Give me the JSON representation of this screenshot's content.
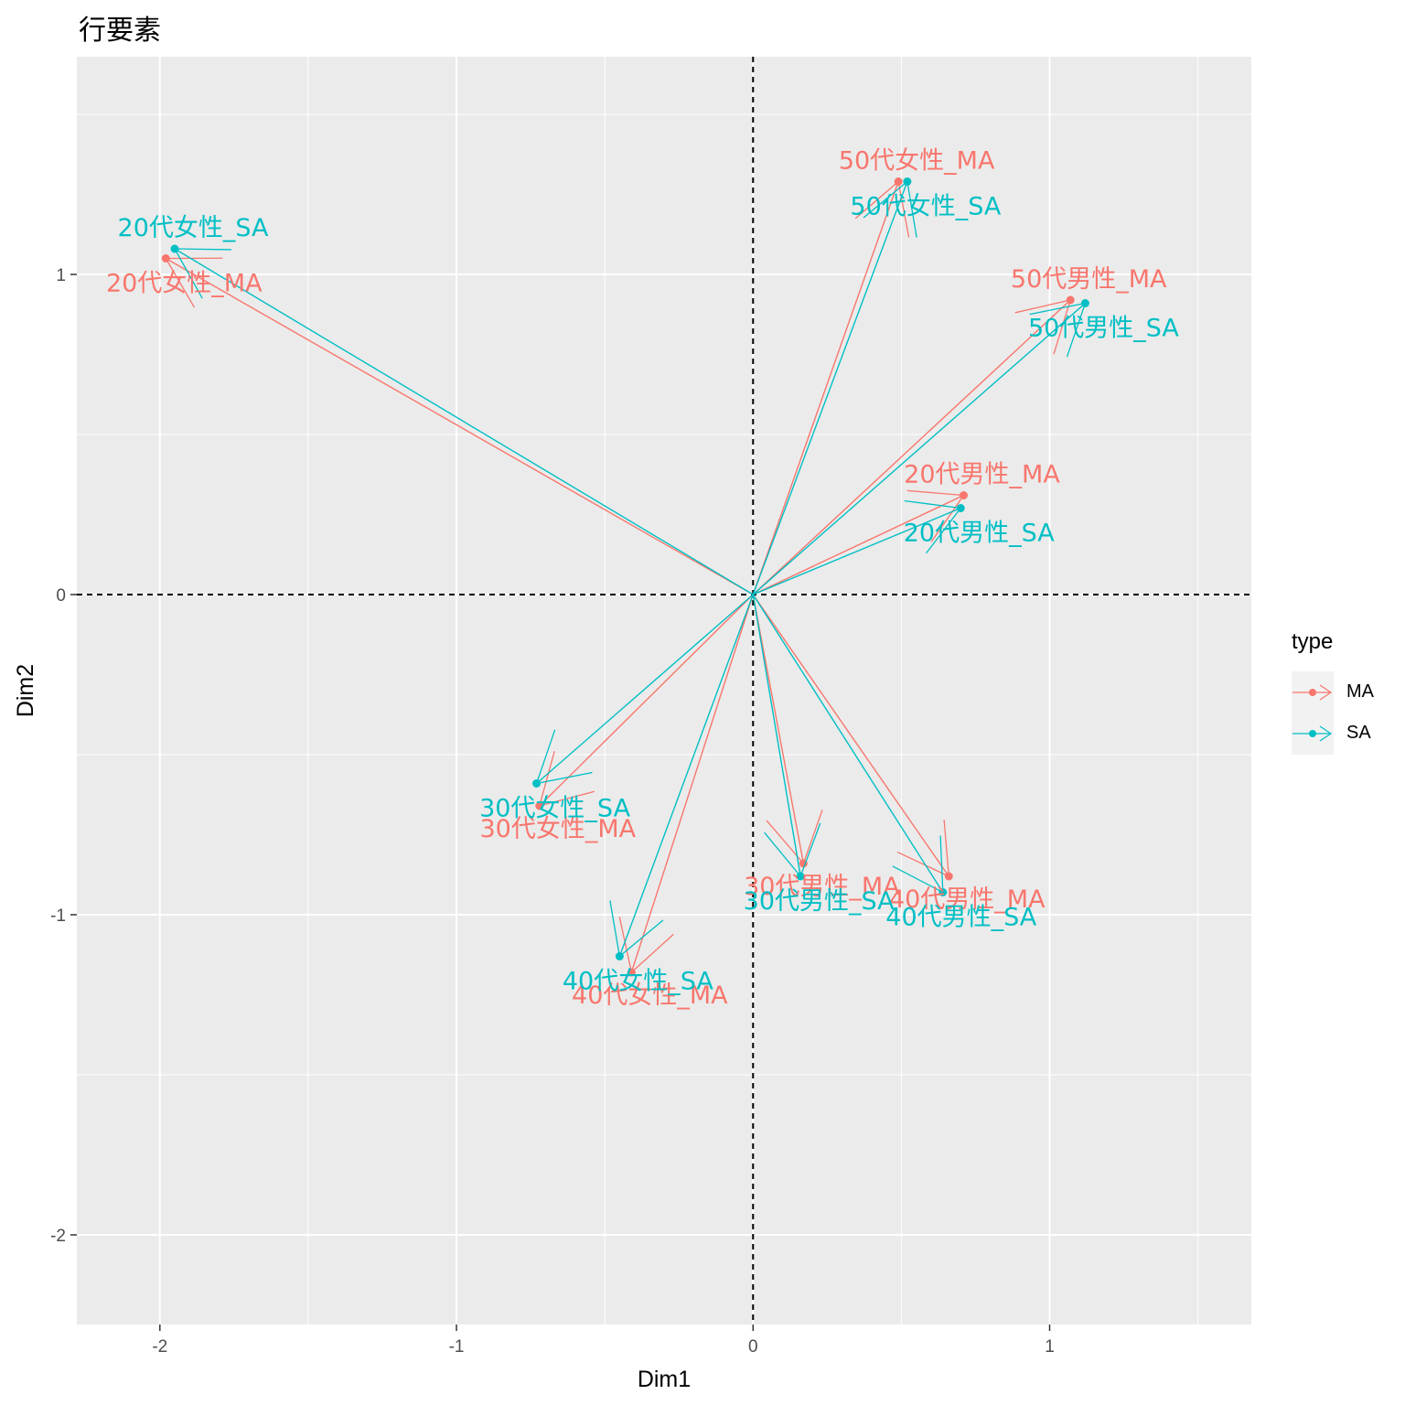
{
  "chart_data": {
    "type": "scatter",
    "title": "行要素",
    "xlabel": "Dim1",
    "ylabel": "Dim2",
    "xlim": [
      -2.28,
      1.68
    ],
    "ylim": [
      -2.28,
      1.68
    ],
    "x_ticks": [
      -2,
      -1,
      0,
      1
    ],
    "y_ticks": [
      -2,
      -1,
      0,
      1
    ],
    "grid": true,
    "reference_lines": {
      "x": 0,
      "y": 0,
      "style": "dashed"
    },
    "arrows_from_origin": true,
    "legend": {
      "title": "type",
      "position": "right"
    },
    "colors": {
      "MA": "#F8766D",
      "SA": "#00BFC4"
    },
    "series": [
      {
        "name": "MA",
        "points": [
          {
            "label": "20代女性_MA",
            "x": -1.98,
            "y": 1.05
          },
          {
            "label": "50代女性_MA",
            "x": 0.49,
            "y": 1.29
          },
          {
            "label": "50代男性_MA",
            "x": 1.07,
            "y": 0.92
          },
          {
            "label": "20代男性_MA",
            "x": 0.71,
            "y": 0.31
          },
          {
            "label": "30代女性_MA",
            "x": -0.72,
            "y": -0.66
          },
          {
            "label": "30代男性_MA",
            "x": 0.17,
            "y": -0.84
          },
          {
            "label": "40代男性_MA",
            "x": 0.66,
            "y": -0.88
          },
          {
            "label": "40代女性_MA",
            "x": -0.41,
            "y": -1.18
          }
        ]
      },
      {
        "name": "SA",
        "points": [
          {
            "label": "20代女性_SA",
            "x": -1.95,
            "y": 1.08
          },
          {
            "label": "50代女性_SA",
            "x": 0.52,
            "y": 1.29
          },
          {
            "label": "50代男性_SA",
            "x": 1.12,
            "y": 0.91
          },
          {
            "label": "20代男性_SA",
            "x": 0.7,
            "y": 0.27
          },
          {
            "label": "30代女性_SA",
            "x": -0.73,
            "y": -0.59
          },
          {
            "label": "30代男性_SA",
            "x": 0.16,
            "y": -0.88
          },
          {
            "label": "40代男性_SA",
            "x": 0.64,
            "y": -0.93
          },
          {
            "label": "40代女性_SA",
            "x": -0.45,
            "y": -1.13
          }
        ]
      }
    ]
  }
}
